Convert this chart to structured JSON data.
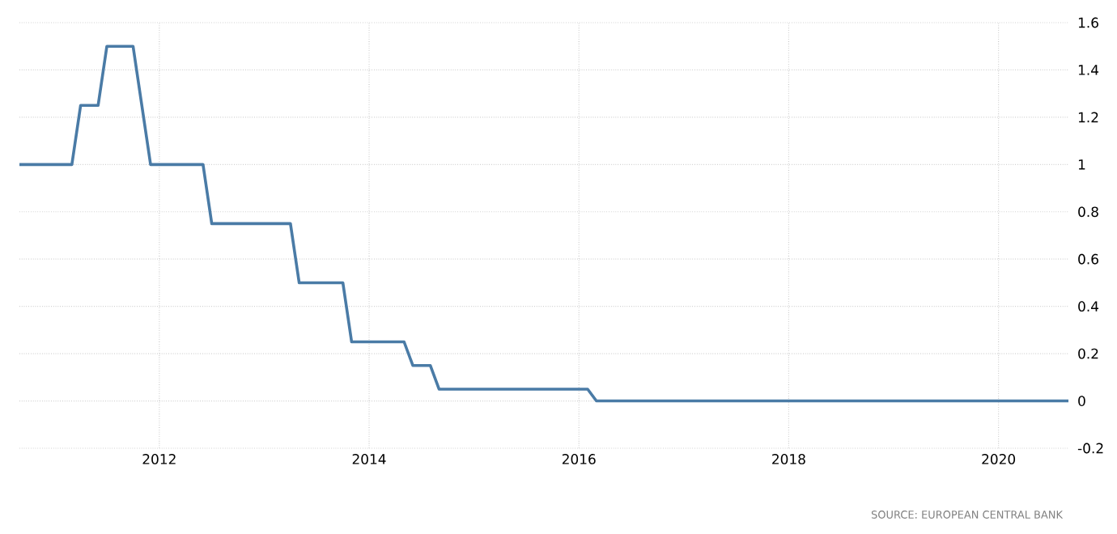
{
  "chart_data": {
    "type": "line",
    "x": [
      "2010-09",
      "2011-03",
      "2011-04",
      "2011-06",
      "2011-07",
      "2011-10",
      "2011-11",
      "2011-12",
      "2012-06",
      "2012-07",
      "2013-04",
      "2013-05",
      "2013-10",
      "2013-11",
      "2014-05",
      "2014-06",
      "2014-08",
      "2014-09",
      "2016-02",
      "2016-03",
      "2020-09"
    ],
    "values": [
      1.0,
      1.0,
      1.25,
      1.25,
      1.5,
      1.5,
      1.25,
      1.0,
      1.0,
      0.75,
      0.75,
      0.5,
      0.5,
      0.25,
      0.25,
      0.15,
      0.15,
      0.05,
      0.05,
      0,
      0
    ],
    "color": "#4a7ba6",
    "xlim": [
      "2010-09",
      "2020-09"
    ],
    "xticks": [
      {
        "value": "2012",
        "label": "2012"
      },
      {
        "value": "2014",
        "label": "2014"
      },
      {
        "value": "2016",
        "label": "2016"
      },
      {
        "value": "2018",
        "label": "2018"
      },
      {
        "value": "2020",
        "label": "2020"
      }
    ],
    "ylim": [
      -0.2,
      1.6
    ],
    "yticks": [
      -0.2,
      0,
      0.2,
      0.4,
      0.6,
      0.8,
      1,
      1.2,
      1.4,
      1.6
    ],
    "grid": true,
    "line_style": "solid",
    "annotations": [
      "SOURCE: EUROPEAN CENTRAL BANK"
    ]
  }
}
